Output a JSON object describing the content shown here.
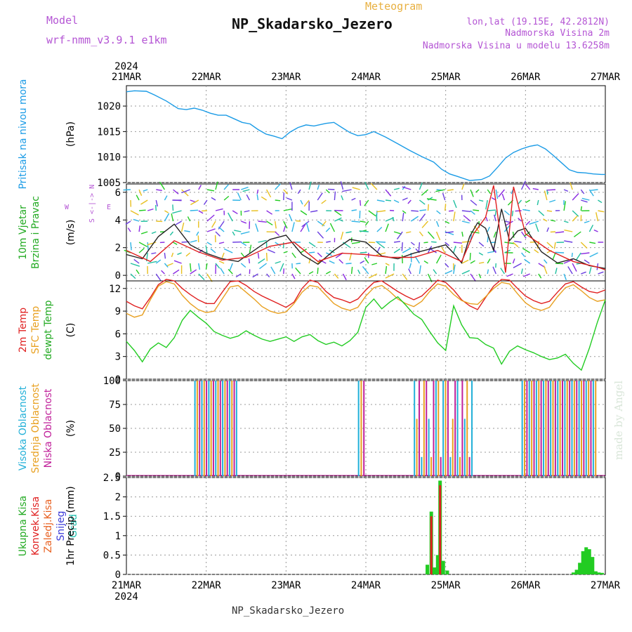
{
  "header": {
    "model_label": "Model",
    "model_name": "wrf-nmm_v3.9.1 e1km",
    "product": "Meteogram",
    "station": "NP_Skadarsko_Jezero",
    "lonlat": "lon,lat (19.15E, 42.2812N)",
    "altitude": "Nadmorska Visina 2m",
    "model_altitude": "Nadmorska Visina u modelu 13.6258m",
    "made_by": "made by Angel",
    "footer": "NP_Skadarsko_Jezero"
  },
  "chart_data": {
    "type": "line",
    "year": "2024",
    "x_ticks": [
      "21MAR",
      "22MAR",
      "23MAR",
      "24MAR",
      "25MAR",
      "26MAR",
      "27MAR"
    ],
    "x_range_days": [
      0,
      6
    ],
    "panels": [
      {
        "id": "pressure",
        "labels": [
          {
            "text": "Pritisak na nivou mora",
            "color": "#1a9be6"
          },
          {
            "text": "(hPa)",
            "color": "#000"
          }
        ],
        "ylim": [
          1005,
          1024
        ],
        "yticks": [
          1005,
          1010,
          1015,
          1020
        ],
        "series": [
          {
            "color": "#1a9be6",
            "x": [
              0,
              0.1,
              0.25,
              0.35,
              0.5,
              0.65,
              0.75,
              0.85,
              0.95,
              1.05,
              1.15,
              1.25,
              1.35,
              1.45,
              1.55,
              1.65,
              1.75,
              1.85,
              1.95,
              2.05,
              2.15,
              2.25,
              2.35,
              2.5,
              2.6,
              2.7,
              2.8,
              2.9,
              3.0,
              3.1,
              3.25,
              3.4,
              3.55,
              3.7,
              3.85,
              3.95,
              4.05,
              4.15,
              4.3,
              4.45,
              4.55,
              4.65,
              4.75,
              4.85,
              4.95,
              5.05,
              5.15,
              5.25,
              5.35,
              5.45,
              5.55,
              5.65,
              5.75,
              5.85,
              5.95,
              6.0
            ],
            "y": [
              1022.8,
              1023.0,
              1022.9,
              1022.2,
              1021.0,
              1019.5,
              1019.3,
              1019.6,
              1019.2,
              1018.6,
              1018.2,
              1018.2,
              1017.5,
              1016.8,
              1016.5,
              1015.4,
              1014.5,
              1014.1,
              1013.6,
              1014.9,
              1015.8,
              1016.3,
              1016.1,
              1016.6,
              1016.8,
              1015.8,
              1014.8,
              1014.2,
              1014.4,
              1015.0,
              1013.9,
              1012.6,
              1011.3,
              1010.1,
              1009.0,
              1007.6,
              1006.7,
              1006.2,
              1005.4,
              1005.6,
              1006.3,
              1008.0,
              1009.8,
              1010.9,
              1011.6,
              1012.1,
              1012.4,
              1011.6,
              1010.3,
              1008.9,
              1007.5,
              1007.0,
              1006.9,
              1006.7,
              1006.6,
              1006.6
            ]
          }
        ]
      },
      {
        "id": "wind",
        "labels": [
          {
            "text": "10m Vjetar",
            "color": "#22aa22"
          },
          {
            "text": "Brzina i Pravac",
            "color": "#22aa22"
          },
          {
            "text": "(m/s)",
            "color": "#000"
          }
        ],
        "compass": [
          "N",
          "W",
          "E",
          "S"
        ],
        "ylim": [
          -0.4,
          6.6
        ],
        "yticks": [
          0,
          2,
          4,
          6
        ],
        "series": [
          {
            "color": "#222222",
            "x": [
              0,
              0.2,
              0.4,
              0.6,
              0.8,
              1.0,
              1.2,
              1.4,
              1.6,
              1.8,
              2.0,
              2.2,
              2.4,
              2.6,
              2.8,
              3.0,
              3.2,
              3.4,
              3.6,
              3.8,
              4.0,
              4.1,
              4.2,
              4.3,
              4.4,
              4.5,
              4.6,
              4.7,
              4.8,
              4.9,
              5.0,
              5.2,
              5.4,
              5.6,
              5.8,
              6.0
            ],
            "y": [
              1.5,
              1.2,
              2.8,
              3.7,
              2.2,
              1.6,
              1.2,
              1.0,
              1.8,
              2.6,
              2.9,
              1.5,
              0.8,
              1.8,
              2.6,
              2.4,
              1.4,
              1.2,
              1.6,
              1.9,
              2.2,
              1.6,
              0.9,
              2.8,
              3.8,
              3.4,
              1.8,
              4.8,
              2.5,
              3.2,
              3.4,
              1.7,
              0.9,
              1.2,
              0.7,
              0.5
            ]
          },
          {
            "color": "#e02020",
            "x": [
              0,
              0.3,
              0.6,
              0.9,
              1.2,
              1.5,
              1.8,
              2.1,
              2.4,
              2.7,
              3.0,
              3.3,
              3.6,
              3.9,
              4.2,
              4.35,
              4.5,
              4.6,
              4.75,
              4.85,
              5.0,
              5.3,
              5.6,
              5.9,
              6.0
            ],
            "y": [
              1.8,
              1.0,
              2.5,
              1.7,
              1.1,
              1.3,
              2.1,
              2.4,
              1.0,
              1.6,
              1.5,
              1.3,
              1.3,
              1.8,
              1.0,
              3.0,
              4.2,
              6.5,
              0.2,
              6.4,
              3.0,
              1.8,
              1.0,
              0.6,
              0.4
            ]
          }
        ]
      },
      {
        "id": "temperature",
        "labels": [
          {
            "text": "2m Temp",
            "color": "#e02020"
          },
          {
            "text": "SFC Temp",
            "color": "#e8a020"
          },
          {
            "text": "dewpt Temp",
            "color": "#22aa22"
          },
          {
            "text": "(C)",
            "color": "#000"
          }
        ],
        "ylim": [
          0,
          13
        ],
        "yticks": [
          0,
          3,
          6,
          9,
          12
        ],
        "series": [
          {
            "name": "2m Temp",
            "color": "#e02020",
            "x": [
              0,
              0.1,
              0.2,
              0.3,
              0.4,
              0.5,
              0.6,
              0.7,
              0.8,
              0.9,
              1.0,
              1.1,
              1.2,
              1.3,
              1.4,
              1.5,
              1.6,
              1.7,
              1.8,
              1.9,
              2.0,
              2.1,
              2.2,
              2.3,
              2.4,
              2.5,
              2.6,
              2.7,
              2.8,
              2.9,
              3.0,
              3.1,
              3.2,
              3.3,
              3.4,
              3.5,
              3.6,
              3.7,
              3.8,
              3.9,
              4.0,
              4.1,
              4.2,
              4.3,
              4.4,
              4.5,
              4.6,
              4.7,
              4.8,
              4.9,
              5.0,
              5.1,
              5.2,
              5.3,
              5.4,
              5.5,
              5.6,
              5.7,
              5.8,
              5.9,
              6.0
            ],
            "y": [
              10.3,
              9.7,
              9.3,
              10.8,
              12.5,
              13.2,
              13.0,
              12.0,
              11.2,
              10.5,
              10.0,
              10.0,
              11.5,
              12.9,
              13.0,
              12.4,
              11.6,
              11.0,
              10.5,
              10.0,
              9.5,
              10.2,
              12.0,
              13.1,
              12.8,
              11.6,
              10.8,
              10.5,
              10.1,
              10.6,
              11.8,
              12.8,
              13.0,
              12.3,
              11.6,
              11.0,
              10.5,
              11.0,
              12.0,
              13.1,
              12.8,
              11.8,
              10.5,
              9.7,
              9.2,
              10.8,
              12.3,
              13.2,
              13.1,
              12.0,
              11.0,
              10.4,
              10.0,
              10.3,
              11.5,
              12.6,
              12.9,
              12.2,
              11.6,
              11.4,
              11.8
            ]
          },
          {
            "name": "SFC Temp",
            "color": "#e8a020",
            "x": [
              0,
              0.1,
              0.2,
              0.3,
              0.4,
              0.5,
              0.6,
              0.7,
              0.8,
              0.9,
              1.0,
              1.1,
              1.2,
              1.3,
              1.4,
              1.5,
              1.6,
              1.7,
              1.8,
              1.9,
              2.0,
              2.1,
              2.2,
              2.3,
              2.4,
              2.5,
              2.6,
              2.7,
              2.8,
              2.9,
              3.0,
              3.1,
              3.2,
              3.3,
              3.4,
              3.5,
              3.6,
              3.7,
              3.8,
              3.9,
              4.0,
              4.1,
              4.2,
              4.3,
              4.4,
              4.5,
              4.6,
              4.7,
              4.8,
              4.9,
              5.0,
              5.1,
              5.2,
              5.3,
              5.4,
              5.5,
              5.6,
              5.7,
              5.8,
              5.9,
              6.0
            ],
            "y": [
              8.7,
              8.2,
              8.5,
              10.5,
              12.3,
              12.9,
              12.6,
              11.1,
              10.0,
              9.2,
              8.8,
              9.0,
              10.6,
              12.2,
              12.4,
              11.5,
              10.6,
              9.6,
              9.0,
              8.7,
              8.9,
              10.0,
              11.5,
              12.4,
              12.2,
              11.1,
              10.0,
              9.4,
              9.1,
              9.5,
              11.0,
              12.1,
              12.4,
              11.6,
              10.6,
              10.0,
              9.6,
              10.3,
              11.6,
              12.6,
              12.3,
              11.2,
              10.4,
              10.0,
              9.9,
              10.9,
              12.0,
              12.8,
              12.6,
              11.3,
              10.1,
              9.4,
              9.1,
              9.5,
              10.9,
              12.1,
              12.5,
              11.7,
              10.8,
              10.3,
              10.5
            ]
          },
          {
            "name": "dewpt Temp",
            "color": "#22cc22",
            "x": [
              0,
              0.1,
              0.2,
              0.3,
              0.4,
              0.5,
              0.6,
              0.7,
              0.8,
              0.9,
              1.0,
              1.1,
              1.2,
              1.3,
              1.4,
              1.5,
              1.6,
              1.7,
              1.8,
              1.9,
              2.0,
              2.1,
              2.2,
              2.3,
              2.4,
              2.5,
              2.6,
              2.7,
              2.8,
              2.9,
              3.0,
              3.1,
              3.2,
              3.3,
              3.4,
              3.5,
              3.6,
              3.7,
              3.8,
              3.9,
              4.0,
              4.1,
              4.2,
              4.3,
              4.4,
              4.5,
              4.6,
              4.7,
              4.8,
              4.9,
              5.0,
              5.1,
              5.2,
              5.3,
              5.4,
              5.5,
              5.6,
              5.7,
              5.8,
              5.9,
              6.0
            ],
            "y": [
              5.0,
              3.8,
              2.3,
              4.0,
              4.8,
              4.2,
              5.5,
              7.8,
              9.1,
              8.2,
              7.4,
              6.3,
              5.8,
              5.4,
              5.7,
              6.4,
              5.8,
              5.3,
              5.0,
              5.3,
              5.6,
              5.0,
              5.6,
              5.9,
              5.1,
              4.6,
              4.9,
              4.4,
              5.1,
              6.2,
              9.5,
              10.6,
              9.3,
              10.2,
              10.9,
              9.8,
              8.6,
              7.9,
              6.3,
              4.8,
              3.8,
              9.7,
              7.2,
              5.5,
              5.4,
              4.6,
              4.1,
              2.0,
              3.7,
              4.4,
              3.9,
              3.5,
              3.0,
              2.6,
              2.8,
              3.3,
              2.1,
              1.2,
              4.1,
              7.5,
              10.5
            ]
          }
        ]
      },
      {
        "id": "clouds",
        "labels": [
          {
            "text": "Visoka Oblacnost",
            "color": "#22b0d8"
          },
          {
            "text": "Srednja Oblacnost",
            "color": "#e8a020"
          },
          {
            "text": "Niska Oblacnost",
            "color": "#c0209a"
          },
          {
            "text": "(%)",
            "color": "#000"
          }
        ],
        "ylim": [
          0,
          100
        ],
        "yticks": [
          0,
          25,
          50,
          75,
          100
        ],
        "bands": [
          {
            "from": 0.85,
            "to": 1.4
          },
          {
            "from": 2.9,
            "to": 3.0
          },
          {
            "from": 3.6,
            "to": 4.35
          },
          {
            "from": 4.95,
            "to": 5.9
          }
        ]
      },
      {
        "id": "precip",
        "labels": [
          {
            "text": "Ukupna Kisa",
            "color": "#22aa22"
          },
          {
            "text": "Konvek.Kisa",
            "color": "#e02020"
          },
          {
            "text": "Zaledj.Kisa",
            "color": "#e86020"
          },
          {
            "text": "Snijeg",
            "color": "#3a3ad8"
          },
          {
            "text": "Grad",
            "color": "#22c0b0"
          },
          {
            "text": "1hr Precip (mm)",
            "color": "#000"
          }
        ],
        "ylim": [
          0,
          2.5
        ],
        "yticks": [
          0,
          0.5,
          1,
          1.5,
          2,
          2.5
        ],
        "bars_total": {
          "x": [
            3.77,
            3.82,
            3.86,
            3.9,
            3.93,
            3.97,
            4.02,
            5.6,
            5.64,
            5.68,
            5.72,
            5.76,
            5.8,
            5.84,
            5.88,
            5.92,
            5.96
          ],
          "y": [
            0.25,
            1.62,
            0.18,
            0.5,
            2.42,
            0.35,
            0.1,
            0.05,
            0.12,
            0.3,
            0.6,
            0.7,
            0.65,
            0.45,
            0.08,
            0.05,
            0.04
          ]
        },
        "bars_convective": {
          "x": [
            3.82,
            3.93
          ],
          "y": [
            1.5,
            2.3
          ]
        }
      }
    ]
  }
}
